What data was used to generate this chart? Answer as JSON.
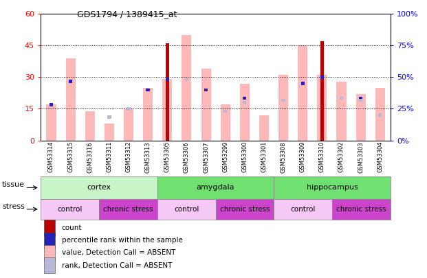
{
  "title": "GDS1794 / 1389415_at",
  "samples": [
    "GSM53314",
    "GSM53315",
    "GSM53316",
    "GSM53311",
    "GSM53312",
    "GSM53313",
    "GSM53305",
    "GSM53306",
    "GSM53307",
    "GSM53299",
    "GSM53300",
    "GSM53301",
    "GSM53308",
    "GSM53309",
    "GSM53310",
    "GSM53302",
    "GSM53303",
    "GSM53304"
  ],
  "red_bar_heights": [
    0,
    0,
    0,
    0,
    0,
    0,
    46,
    0,
    0,
    0,
    0,
    0,
    0,
    0,
    47,
    0,
    0,
    0
  ],
  "pink_bar_heights": [
    17,
    39,
    14,
    8,
    15,
    25,
    29,
    50,
    34,
    17,
    27,
    12,
    31,
    45,
    31,
    28,
    22,
    25
  ],
  "blue_sq_heights": [
    17,
    28,
    0,
    11,
    0,
    24,
    29,
    0,
    24,
    14,
    20,
    0,
    0,
    27,
    30,
    20,
    20,
    0
  ],
  "lavender_sq_heights": [
    0,
    0,
    0,
    11,
    15,
    0,
    0,
    29,
    0,
    14,
    18,
    0,
    19,
    0,
    0,
    20,
    19,
    12
  ],
  "ylim_left": [
    0,
    60
  ],
  "ylim_right": [
    0,
    100
  ],
  "yticks_left": [
    0,
    15,
    30,
    45,
    60
  ],
  "yticks_right": [
    0,
    25,
    50,
    75,
    100
  ],
  "tissue_groups": [
    {
      "label": "cortex",
      "start": 0,
      "end": 6,
      "color": "#c8f5c8"
    },
    {
      "label": "amygdala",
      "start": 6,
      "end": 12,
      "color": "#70e070"
    },
    {
      "label": "hippocampus",
      "start": 12,
      "end": 18,
      "color": "#70e070"
    }
  ],
  "stress_groups": [
    {
      "label": "control",
      "start": 0,
      "end": 3,
      "color": "#f5c8f5"
    },
    {
      "label": "chronic stress",
      "start": 3,
      "end": 6,
      "color": "#cc44cc"
    },
    {
      "label": "control",
      "start": 6,
      "end": 9,
      "color": "#f5c8f5"
    },
    {
      "label": "chronic stress",
      "start": 9,
      "end": 12,
      "color": "#cc44cc"
    },
    {
      "label": "control",
      "start": 12,
      "end": 15,
      "color": "#f5c8f5"
    },
    {
      "label": "chronic stress",
      "start": 15,
      "end": 18,
      "color": "#cc44cc"
    }
  ],
  "red_color": "#bb0000",
  "pink_color": "#ffb8b8",
  "blue_color": "#2222bb",
  "lavender_color": "#b8b8d8",
  "xtick_bg": "#d8d8d8",
  "legend_items": [
    {
      "label": "count",
      "color": "#bb0000",
      "marker": "s"
    },
    {
      "label": "percentile rank within the sample",
      "color": "#2222bb",
      "marker": "s"
    },
    {
      "label": "value, Detection Call = ABSENT",
      "color": "#ffb8b8",
      "marker": "s"
    },
    {
      "label": "rank, Detection Call = ABSENT",
      "color": "#b8b8d8",
      "marker": "s"
    }
  ]
}
